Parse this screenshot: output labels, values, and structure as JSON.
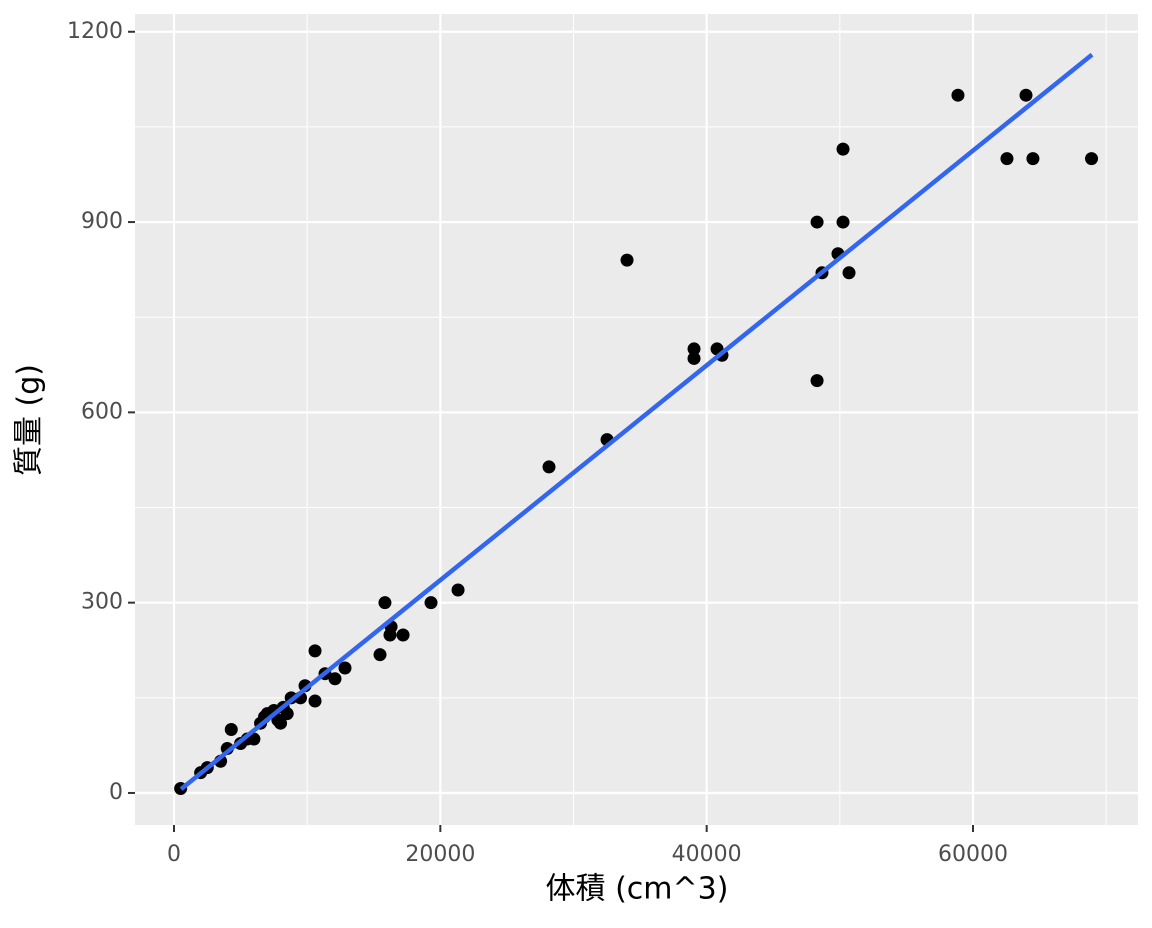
{
  "chart_data": {
    "type": "scatter",
    "x_label": "体積 (cm^3)",
    "y_label": "質量 (g)",
    "xlim": [
      -2929,
      72390
    ],
    "ylim": [
      -50.5,
      1228
    ],
    "xticks": [
      0,
      20000,
      40000,
      60000
    ],
    "yticks": [
      0,
      300,
      600,
      900,
      1200
    ],
    "x_minor_ticks": [
      10000,
      30000,
      50000,
      70000
    ],
    "y_minor_ticks": [
      150,
      450,
      750,
      1050
    ],
    "grid": true,
    "panel_color": "#ebebeb",
    "series": [
      {
        "color": "#000000",
        "x": [
          500,
          2000,
          2500,
          3500,
          4000,
          4300,
          5000,
          5500,
          6000,
          6500,
          6800,
          7000,
          7500,
          7800,
          8000,
          8200,
          8500,
          8800,
          9500,
          9840,
          10590,
          10590,
          11340,
          12090,
          12840,
          15470,
          15840,
          16300,
          16220,
          17200,
          19300,
          21330,
          28160,
          32520,
          34020,
          39050,
          39050,
          40780,
          41150,
          48290,
          48290,
          48660,
          49860,
          50240,
          50240,
          50690,
          58870,
          62550,
          63980,
          64500,
          68900
        ],
        "values": [
          7,
          32,
          40,
          50,
          70,
          100,
          78,
          85,
          85,
          110,
          120,
          125,
          130,
          115,
          110,
          135,
          125,
          150,
          150,
          169,
          224,
          145,
          188,
          180,
          197,
          218,
          300,
          262,
          249,
          249,
          300,
          320,
          514,
          557,
          840,
          685,
          700,
          700,
          690,
          900,
          650,
          820,
          850,
          1015,
          900,
          820,
          1100,
          1000,
          1100,
          1000,
          1000
        ]
      }
    ],
    "trend": {
      "color": "#3366ee",
      "x": [
        530,
        68940
      ],
      "values": [
        6,
        1164
      ]
    }
  }
}
